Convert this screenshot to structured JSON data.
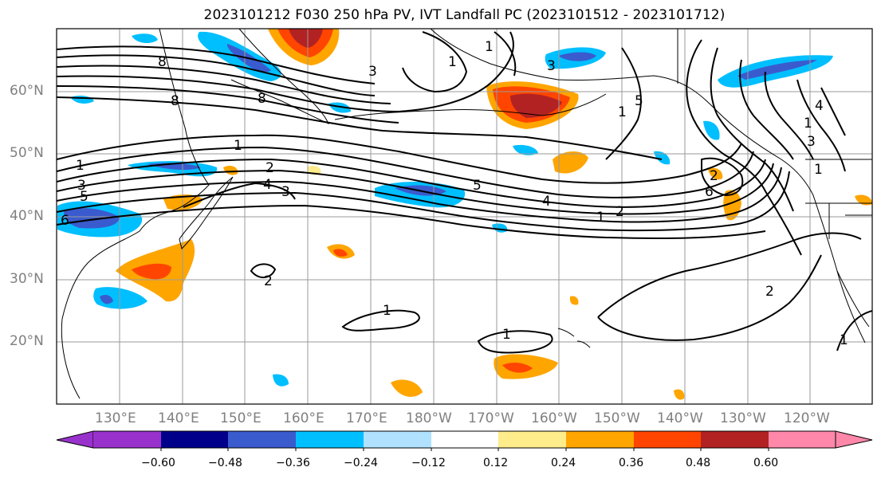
{
  "title": "2023101212 F030 250 hPa PV, IVT Landfall PC (2023101512 - 2023101712)",
  "lat_labels": [
    "60°N",
    "50°N",
    "40°N",
    "30°N",
    "20°N"
  ],
  "lon_labels": [
    "130°E",
    "140°E",
    "150°E",
    "160°E",
    "170°E",
    "180°W",
    "170°W",
    "160°W",
    "150°W",
    "140°W",
    "130°W",
    "120°W"
  ],
  "colorbar": {
    "ticks": [
      "−0.60",
      "−0.48",
      "−0.36",
      "−0.24",
      "−0.12",
      "0.12",
      "0.24",
      "0.36",
      "0.48",
      "0.60"
    ],
    "colors": [
      "#9932cc",
      "#00008b",
      "#3a5bcd",
      "#00bfff",
      "#b0e2ff",
      "#ffffff",
      "#ffec8b",
      "#ffa500",
      "#ff4500",
      "#b22222",
      "#ff88aa"
    ]
  },
  "contour_labels": [
    "8",
    "8",
    "8",
    "3",
    "3",
    "1",
    "1",
    "1",
    "1",
    "1",
    "2",
    "2",
    "2",
    "3",
    "3",
    "4",
    "4",
    "5",
    "5",
    "5",
    "6",
    "6",
    "1",
    "2",
    "1",
    "1",
    "1",
    "2",
    "1",
    "3",
    "1",
    "4"
  ]
}
